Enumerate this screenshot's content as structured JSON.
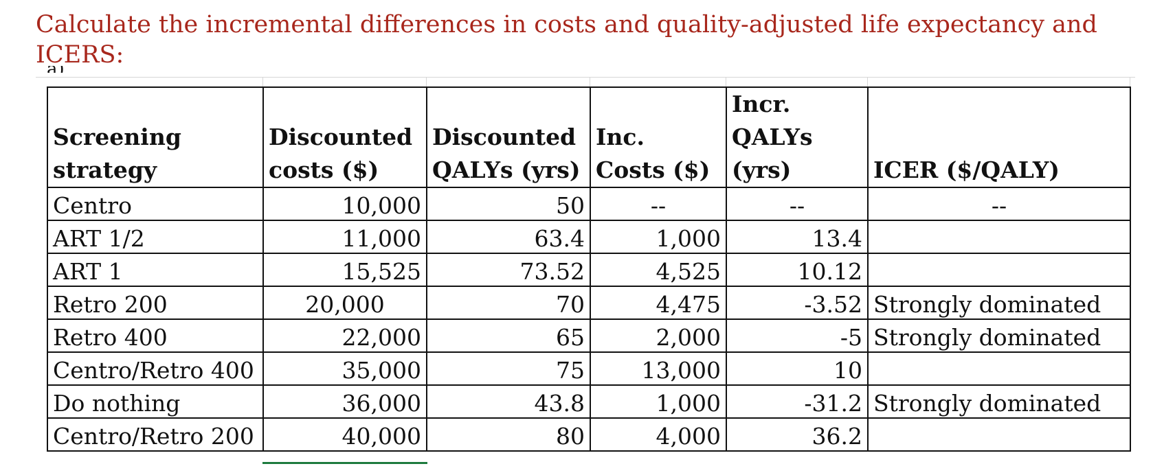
{
  "heading": "Calculate the incremental differences in costs and quality-adjusted life expectancy and ICERS:",
  "partial_label": "a)",
  "table": {
    "headers": [
      "Screening strategy",
      "Discounted costs ($)",
      "Discounted QALYs (yrs)",
      "Inc. Costs ($)",
      "Incr. QALYs (yrs)",
      "ICER ($/QALY)"
    ],
    "rows": [
      [
        "Centro",
        "10,000",
        "50",
        "--",
        "--",
        "--"
      ],
      [
        "ART 1/2",
        "11,000",
        "63.4",
        "1,000",
        "13.4",
        ""
      ],
      [
        "ART 1",
        "15,525",
        "73.52",
        "4,525",
        "10.12",
        ""
      ],
      [
        "Retro 200",
        "20,000",
        "70",
        "4,475",
        "-3.52",
        "Strongly dominated"
      ],
      [
        "Retro 400",
        "22,000",
        "65",
        "2,000",
        "-5",
        "Strongly dominated"
      ],
      [
        "Centro/Retro 400",
        "35,000",
        "75",
        "13,000",
        "10",
        ""
      ],
      [
        "Do nothing",
        "36,000",
        "43.8",
        "1,000",
        "-31.2",
        "Strongly dominated"
      ],
      [
        "Centro/Retro 200",
        "40,000",
        "80",
        "4,000",
        "36.2",
        ""
      ]
    ]
  }
}
